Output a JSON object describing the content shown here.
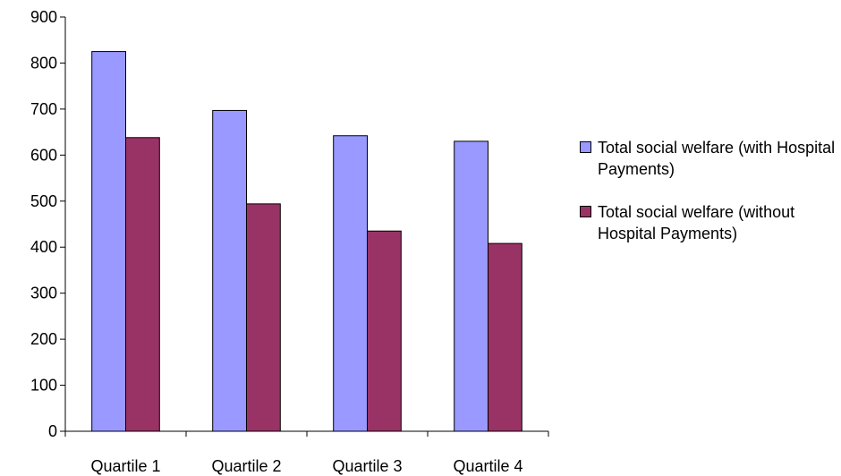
{
  "chart_data": {
    "type": "bar",
    "categories": [
      "Quartile 1",
      "Quartile 2",
      "Quartile 3",
      "Quartile 4"
    ],
    "series": [
      {
        "name": "Total social welfare (with Hospital Payments)",
        "values": [
          825,
          697,
          642,
          630
        ],
        "color": "#9999ff"
      },
      {
        "name": "Total social welfare (without Hospital Payments)",
        "values": [
          638,
          494,
          435,
          408
        ],
        "color": "#993366"
      }
    ],
    "yticks": [
      "0",
      "100",
      "200",
      "300",
      "400",
      "500",
      "600",
      "700",
      "800",
      "900"
    ],
    "ylim": [
      0,
      900
    ],
    "grid": false,
    "legend_position": "right"
  }
}
